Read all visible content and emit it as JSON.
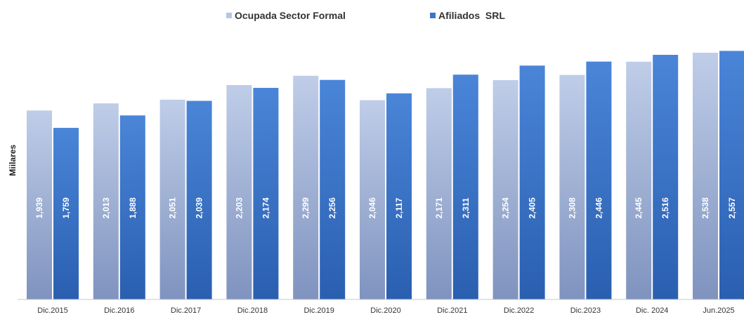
{
  "chart_data": {
    "type": "bar",
    "title": "",
    "xlabel": "",
    "ylabel": "Miilares",
    "categories": [
      "Dic.2015",
      "Dic.2016",
      "Dic.2017",
      "Dic.2018",
      "Dic.2019",
      "Dic.2020",
      "Dic.2021",
      "Dic.2022",
      "Dic.2023",
      "Dic. 2024",
      "Jun.2025"
    ],
    "series": [
      {
        "name": "Ocupada Sector Formal",
        "values": [
          1939,
          2013,
          2051,
          2203,
          2299,
          2046,
          2171,
          2254,
          2308,
          2445,
          2538
        ],
        "value_labels": [
          "1,939",
          "2,013",
          "2,051",
          "2,203",
          "2,299",
          "2,046",
          "2,171",
          "2,254",
          "2,308",
          "2,445",
          "2,538"
        ],
        "color_top": "#bfcde8",
        "color_bottom": "#7f93bf"
      },
      {
        "name": "Afiliados  SRL",
        "values": [
          1759,
          1888,
          2039,
          2174,
          2256,
          2117,
          2311,
          2405,
          2446,
          2516,
          2557
        ],
        "value_labels": [
          "1,759",
          "1,888",
          "2,039",
          "2,174",
          "2,256",
          "2,117",
          "2,311",
          "2,405",
          "2,446",
          "2,516",
          "2,557"
        ],
        "color_top": "#4a85d8",
        "color_bottom": "#2a5fb0"
      }
    ],
    "ylim": [
      0,
      2800
    ],
    "grid": false,
    "legend_position": "top-center",
    "y_ticks_shown": false
  }
}
